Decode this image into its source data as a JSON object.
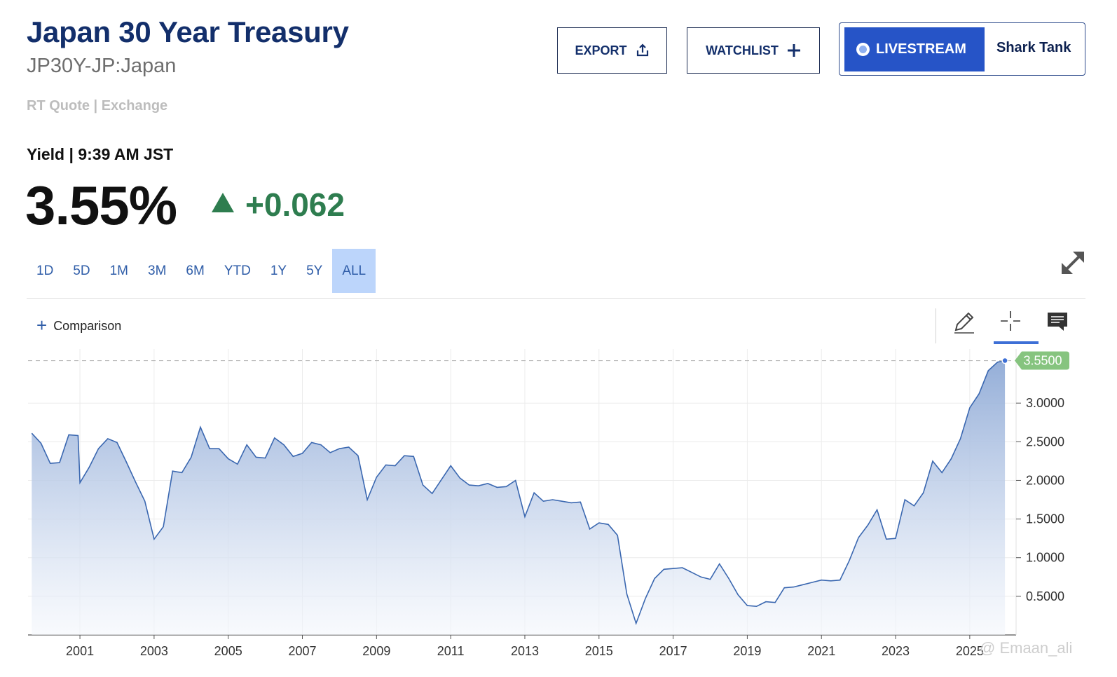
{
  "header": {
    "title": "Japan 30 Year Treasury",
    "symbol": "JP30Y-JP:Japan",
    "quote_source": "RT Quote | Exchange",
    "export_label": "EXPORT",
    "watchlist_label": "WATCHLIST",
    "livestream_label": "LIVESTREAM",
    "shark_label": "Shark Tank"
  },
  "quote": {
    "label": "Yield | 9:39 AM JST",
    "value": "3.55%",
    "change": "+0.062",
    "change_color": "#2e7d4f"
  },
  "ranges": [
    "1D",
    "5D",
    "1M",
    "3M",
    "6M",
    "YTD",
    "1Y",
    "5Y",
    "ALL"
  ],
  "active_range": "ALL",
  "toolbar": {
    "comparison_label": "Comparison",
    "icons": [
      "pencil-icon",
      "crosshair-icon",
      "comment-icon"
    ]
  },
  "watermark": "@ Emaan_ali",
  "chart_data": {
    "type": "area",
    "x_ticks": [
      "2001",
      "2003",
      "2005",
      "2007",
      "2009",
      "2011",
      "2013",
      "2015",
      "2017",
      "2019",
      "2021",
      "2023",
      "2025"
    ],
    "y_ticks": [
      "0.5000",
      "1.0000",
      "1.5000",
      "2.0000",
      "2.5000",
      "3.0000"
    ],
    "ylim": [
      0,
      3.7
    ],
    "xlim": [
      1999.6,
      2026.25
    ],
    "last_value_label": "3.5500",
    "line_color": "#3a67b0",
    "badge_color": "#86c47f",
    "grid": true,
    "series": [
      {
        "x": [
          1999.7,
          1999.95,
          2000.2,
          2000.45,
          2000.7,
          2000.95,
          2001.0,
          2001.25,
          2001.5,
          2001.75,
          2002.0,
          2002.25,
          2002.5,
          2002.75,
          2003.0,
          2003.25,
          2003.5,
          2003.75,
          2004.0,
          2004.25,
          2004.5,
          2004.75,
          2005.0,
          2005.25,
          2005.5,
          2005.75,
          2006.0,
          2006.25,
          2006.5,
          2006.75,
          2007.0,
          2007.25,
          2007.5,
          2007.75,
          2008.0,
          2008.25,
          2008.5,
          2008.75,
          2009.0,
          2009.25,
          2009.5,
          2009.75,
          2010.0,
          2010.25,
          2010.5,
          2010.75,
          2011.0,
          2011.25,
          2011.5,
          2011.75,
          2012.0,
          2012.25,
          2012.5,
          2012.75,
          2013.0,
          2013.25,
          2013.5,
          2013.75,
          2014.0,
          2014.25,
          2014.5,
          2014.75,
          2015.0,
          2015.25,
          2015.5,
          2015.75,
          2016.0,
          2016.25,
          2016.5,
          2016.75,
          2017.0,
          2017.25,
          2017.5,
          2017.75,
          2018.0,
          2018.25,
          2018.5,
          2018.75,
          2019.0,
          2019.25,
          2019.5,
          2019.75,
          2020.0,
          2020.25,
          2020.5,
          2020.75,
          2021.0,
          2021.25,
          2021.5,
          2021.75,
          2022.0,
          2022.25,
          2022.5,
          2022.75,
          2023.0,
          2023.25,
          2023.5,
          2023.75,
          2024.0,
          2024.25,
          2024.5,
          2024.75,
          2025.0,
          2025.25,
          2025.5,
          2025.75,
          2025.95
        ],
        "y": [
          2.61,
          2.48,
          2.22,
          2.23,
          2.59,
          2.58,
          1.97,
          2.17,
          2.41,
          2.54,
          2.49,
          2.24,
          1.98,
          1.73,
          1.24,
          1.4,
          2.12,
          2.1,
          2.3,
          2.69,
          2.41,
          2.41,
          2.28,
          2.21,
          2.46,
          2.3,
          2.29,
          2.55,
          2.46,
          2.31,
          2.35,
          2.49,
          2.46,
          2.36,
          2.41,
          2.43,
          2.32,
          1.75,
          2.04,
          2.2,
          2.19,
          2.32,
          2.31,
          1.94,
          1.83,
          2.01,
          2.19,
          2.03,
          1.94,
          1.93,
          1.96,
          1.91,
          1.92,
          2.0,
          1.53,
          1.84,
          1.73,
          1.75,
          1.73,
          1.71,
          1.72,
          1.37,
          1.45,
          1.43,
          1.29,
          0.53,
          0.15,
          0.47,
          0.73,
          0.85,
          0.86,
          0.87,
          0.81,
          0.75,
          0.72,
          0.92,
          0.73,
          0.52,
          0.38,
          0.37,
          0.43,
          0.42,
          0.61,
          0.62,
          0.65,
          0.68,
          0.71,
          0.7,
          0.71,
          0.96,
          1.26,
          1.42,
          1.62,
          1.24,
          1.25,
          1.75,
          1.67,
          1.84,
          2.25,
          2.1,
          2.28,
          2.54,
          2.94,
          3.12,
          3.42,
          3.53,
          3.55
        ]
      }
    ]
  }
}
